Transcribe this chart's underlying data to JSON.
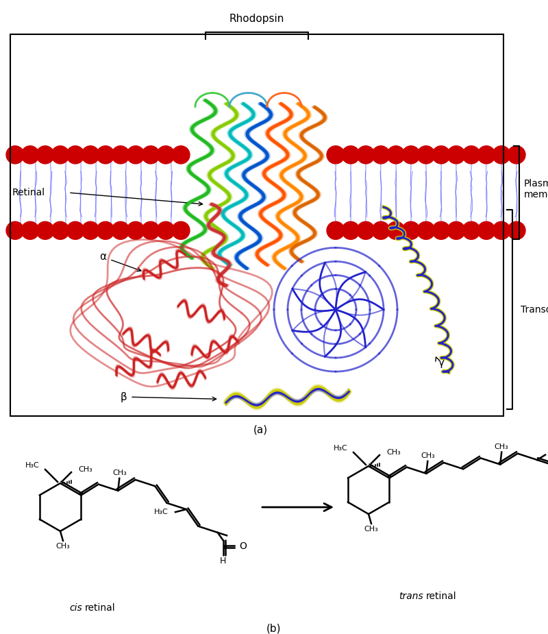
{
  "title_a": "(a)",
  "title_b": "(b)",
  "rhodopsin_label": "Rhodopsin",
  "plasma_membrane_label": "Plasma\nmembrane",
  "retinal_label": "Retinal",
  "alpha_label": "α",
  "beta_label": "β",
  "gamma_label": "γ",
  "transducin_label": "Transducin",
  "cis_label": "cis retinal",
  "trans_label": "trans retinal",
  "background_color": "#ffffff",
  "membrane_dot_color": "#cc0000",
  "membrane_tail_color": "#6666ff",
  "protein_colors": {
    "alpha_sub": "#cc2222",
    "beta_sub": "#2222cc",
    "gamma_sub": "#cccc00"
  },
  "bond_color": "#000000",
  "text_color": "#000000"
}
